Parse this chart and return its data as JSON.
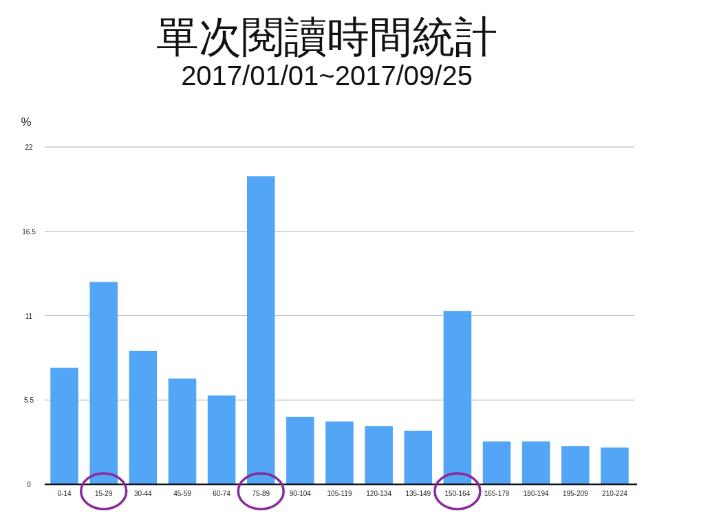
{
  "chart_data": {
    "type": "bar",
    "title": "單次閱讀時間統計",
    "subtitle": "2017/01/01~2017/09/25",
    "ylabel": "%",
    "categories": [
      "0-14",
      "15-29",
      "30-44",
      "45-59",
      "60-74",
      "75-89",
      "90-104",
      "105-119",
      "120-134",
      "135-149",
      "150-164",
      "165-179",
      "180-194",
      "195-209",
      "210-224"
    ],
    "values": [
      7.6,
      13.2,
      8.7,
      6.9,
      5.8,
      20.1,
      4.4,
      4.1,
      3.8,
      3.5,
      11.3,
      2.8,
      2.8,
      2.5,
      2.4
    ],
    "color": "#52a6f5",
    "ylim": [
      0,
      22
    ],
    "yticks": [
      0,
      5.5,
      11,
      16.5,
      22
    ],
    "grid": "y"
  }
}
